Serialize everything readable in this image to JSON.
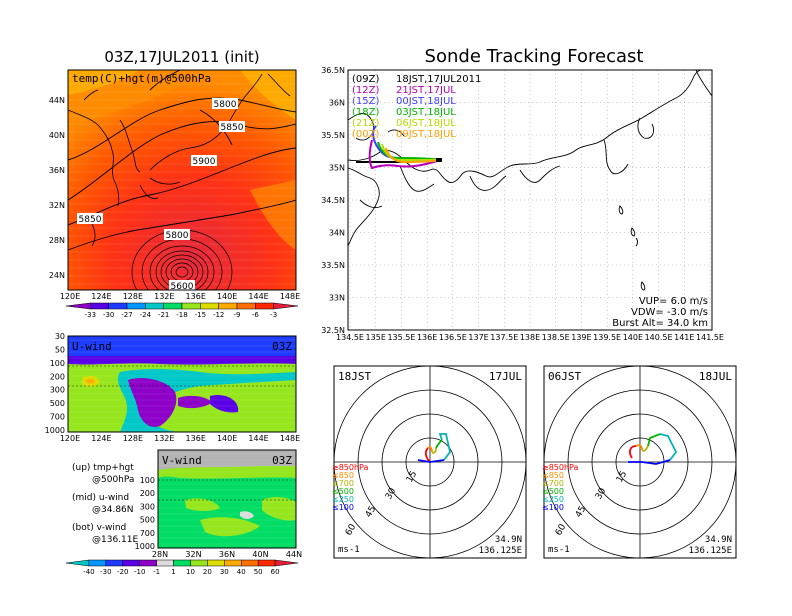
{
  "left": {
    "title": "03Z,17JUL2011 (init)",
    "top_map": {
      "label": "temp(C)+hgt(m)@500hPa",
      "lat_labels": [
        "44N",
        "40N",
        "36N",
        "32N",
        "28N",
        "24N"
      ],
      "lon_labels": [
        "120E",
        "124E",
        "128E",
        "132E",
        "136E",
        "140E",
        "144E",
        "148E"
      ],
      "contour_labels": [
        "5800",
        "5850",
        "5900",
        "5850",
        "5800",
        "5600"
      ],
      "colorbar_labels": [
        "-33",
        "-30",
        "-27",
        "-24",
        "-21",
        "-18",
        "-15",
        "-12",
        "-9",
        "-6",
        "-3"
      ],
      "colorbar_colors": [
        "#8c00c8",
        "#5a00e6",
        "#1e3cff",
        "#0096ff",
        "#00c8c8",
        "#00dc64",
        "#96e61e",
        "#dcdc00",
        "#ffaa00",
        "#ff6e00",
        "#ff2800",
        "#e61e3c"
      ]
    },
    "u_panel": {
      "label": "U-wind",
      "time": "03Z",
      "levels": [
        "30",
        "50",
        "100",
        "200",
        "300",
        "500",
        "700",
        "1000"
      ],
      "lon_labels": [
        "120E",
        "124E",
        "128E",
        "132E",
        "136E",
        "140E",
        "144E",
        "148E"
      ]
    },
    "v_panel": {
      "label": "V-wind",
      "time": "03Z",
      "levels": [
        "100",
        "200",
        "300",
        "500",
        "700",
        "1000"
      ],
      "lat_labels": [
        "28N",
        "32N",
        "36N",
        "40N",
        "44N"
      ]
    },
    "legend_text": {
      "up": "(up) tmp+hgt",
      "up2": "@500hPa",
      "mid": "(mid) u-wind",
      "mid2": "@34.86N",
      "bot": "(bot) v-wind",
      "bot2": "@136.11E"
    },
    "wind_colorbar_labels": [
      "-40",
      "-30",
      "-20",
      "-10",
      "-1",
      "1",
      "10",
      "20",
      "30",
      "40",
      "50",
      "60"
    ],
    "wind_colorbar_colors": [
      "#00c8c8",
      "#0096ff",
      "#1e3cff",
      "#5a00e6",
      "#8c00c8",
      "#dcdcdc",
      "#00dc64",
      "#96e61e",
      "#dcdc00",
      "#ffaa00",
      "#ff6e00",
      "#ff2800",
      "#e61e3c"
    ]
  },
  "right": {
    "title": "Sonde Tracking Forecast",
    "map": {
      "lat_labels": [
        "36.5N",
        "36N",
        "35.5N",
        "35N",
        "34.5N",
        "34N",
        "33.5N",
        "33N",
        "32.5N"
      ],
      "lon_labels": [
        "134.5E",
        "135E",
        "135.5E",
        "136E",
        "136.5E",
        "137E",
        "137.5E",
        "138E",
        "138.5E",
        "139E",
        "139.5E",
        "140E",
        "140.5E",
        "141E",
        "141.5E"
      ],
      "tracks": [
        {
          "tag": "(09Z)",
          "label": "18JST,17JUL2011",
          "color": "#000000"
        },
        {
          "tag": "(12Z)",
          "label": "21JST,17JUL",
          "color": "#b400b4"
        },
        {
          "tag": "(15Z)",
          "label": "00JST,18JUL",
          "color": "#3c3cff"
        },
        {
          "tag": "(18Z)",
          "label": "03JST,18JUL",
          "color": "#00b400"
        },
        {
          "tag": "(21Z)",
          "label": "06JST,18JUL",
          "color": "#b4dc00"
        },
        {
          "tag": "(00Z)",
          "label": "09JST,18JUL",
          "color": "#ffa000"
        }
      ],
      "vup": "VUP=  6.0  m/s",
      "vdw": "VDW=  -3.0  m/s",
      "burst": "Burst Alt=  34.0  km"
    },
    "hodo_left": {
      "time": "18JST",
      "date": "17JUL",
      "rings": [
        "15",
        "30",
        "45",
        "60"
      ],
      "levels": [
        "≥850hPa",
        "≤850",
        "≤700",
        "≤500",
        "≤250",
        "≤100"
      ],
      "level_colors": [
        "#ff0000",
        "#ff8c00",
        "#b4b400",
        "#00b400",
        "#00b4b4",
        "#0000ff"
      ],
      "unit": "ms-1",
      "lat": "34.9N",
      "lon": "136.125E"
    },
    "hodo_right": {
      "time": "06JST",
      "date": "18JUL",
      "rings": [
        "15",
        "30",
        "45",
        "60"
      ],
      "levels": [
        "≥850hPa",
        "≤850",
        "≤700",
        "≤500",
        "≤250",
        "≤100"
      ],
      "level_colors": [
        "#ff0000",
        "#ff8c00",
        "#b4b400",
        "#00b400",
        "#00b4b4",
        "#0000ff"
      ],
      "unit": "ms-1",
      "lat": "34.9N",
      "lon": "136.125E"
    }
  }
}
